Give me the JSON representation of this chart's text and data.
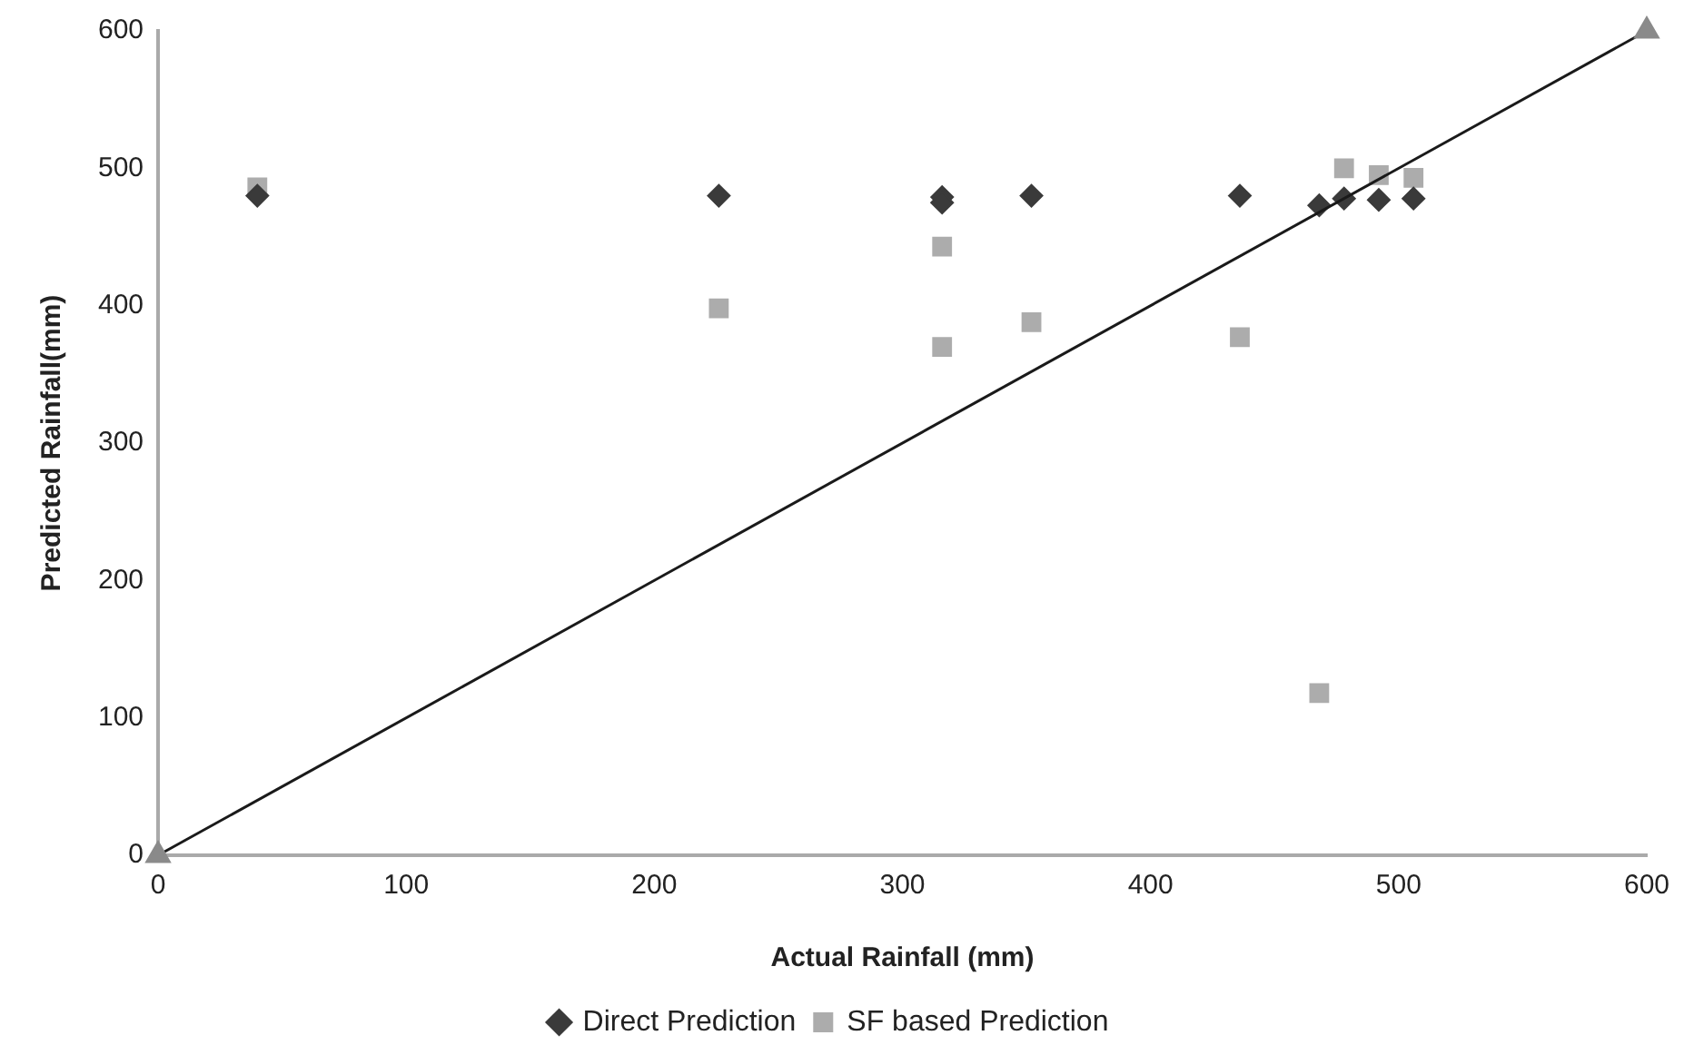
{
  "chart_data": {
    "type": "scatter",
    "xlabel": "Actual Rainfall (mm)",
    "ylabel": "Predicted Rainfall(mm)",
    "xlim": [
      0,
      600
    ],
    "xticks": [
      0,
      100,
      200,
      300,
      400,
      500,
      600
    ],
    "ylim": [
      0,
      600
    ],
    "yticks": [
      0,
      100,
      200,
      300,
      400,
      500,
      600
    ],
    "grid": false,
    "legend": "bottom",
    "series": [
      {
        "name": "Direct Prediction",
        "color": "#3a3a3a",
        "marker": "diamond",
        "x": [
          40,
          226,
          316,
          316,
          352,
          436,
          468,
          478,
          492,
          506
        ],
        "values": [
          480,
          480,
          479,
          475,
          480,
          480,
          473,
          478,
          477,
          478
        ]
      },
      {
        "name": "SF based Prediction",
        "color": "#acacac",
        "marker": "square",
        "x": [
          40,
          226,
          316,
          316,
          352,
          436,
          468,
          478,
          492,
          506
        ],
        "values": [
          486,
          398,
          443,
          370,
          388,
          377,
          118,
          500,
          495,
          493
        ]
      },
      {
        "type": "line",
        "color": "#1a1a1a",
        "marker": "triangle",
        "x": [
          0,
          600
        ],
        "values": [
          0,
          600
        ]
      }
    ]
  }
}
